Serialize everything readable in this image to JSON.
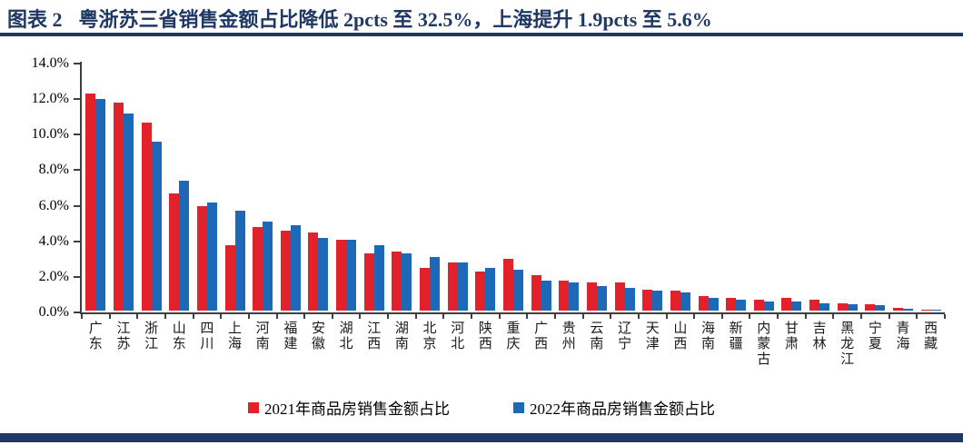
{
  "header": {
    "figure_label": "图表 2",
    "title": "粤浙苏三省销售金额占比降低 2pcts 至 32.5%，上海提升 1.9pcts 至 5.6%"
  },
  "colors": {
    "navy": "#1F3864",
    "red": "#E2222B",
    "blue": "#1E68B8",
    "axis": "#3f3f3f"
  },
  "chart_data": {
    "type": "bar",
    "title": "",
    "xlabel": "",
    "ylabel": "",
    "ylim": [
      0,
      14
    ],
    "ytick_step": 2,
    "yticks": [
      "0.0%",
      "2.0%",
      "4.0%",
      "6.0%",
      "8.0%",
      "10.0%",
      "12.0%",
      "14.0%"
    ],
    "grid": false,
    "legend_position": "bottom",
    "categories": [
      "广东",
      "江苏",
      "浙江",
      "山东",
      "四川",
      "上海",
      "河南",
      "福建",
      "安徽",
      "湖北",
      "江西",
      "湖南",
      "北京",
      "河北",
      "陕西",
      "重庆",
      "广西",
      "贵州",
      "云南",
      "辽宁",
      "天津",
      "山西",
      "海南",
      "新疆",
      "内蒙古",
      "甘肃",
      "吉林",
      "黑龙江",
      "宁夏",
      "青海",
      "西藏"
    ],
    "series": [
      {
        "name": "2021年商品房销售金额占比",
        "color_key": "red",
        "values": [
          12.2,
          11.7,
          10.6,
          6.6,
          5.9,
          3.7,
          4.7,
          4.5,
          4.4,
          4.0,
          3.2,
          3.3,
          2.4,
          2.7,
          2.2,
          2.9,
          2.0,
          1.7,
          1.6,
          1.6,
          1.2,
          1.1,
          0.8,
          0.7,
          0.6,
          0.7,
          0.6,
          0.4,
          0.35,
          0.15,
          0.05
        ]
      },
      {
        "name": "2022年商品房销售金额占比",
        "color_key": "blue",
        "values": [
          11.9,
          11.1,
          9.5,
          7.3,
          6.1,
          5.6,
          5.0,
          4.8,
          4.1,
          4.0,
          3.7,
          3.2,
          3.0,
          2.7,
          2.4,
          2.3,
          1.7,
          1.6,
          1.4,
          1.3,
          1.1,
          1.0,
          0.7,
          0.6,
          0.5,
          0.5,
          0.4,
          0.35,
          0.3,
          0.1,
          0.03
        ]
      }
    ]
  }
}
